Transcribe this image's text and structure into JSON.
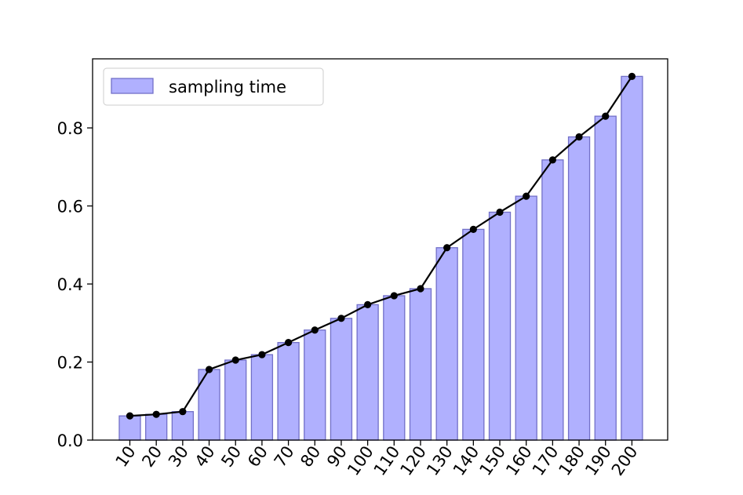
{
  "chart_data": {
    "type": "bar",
    "categories": [
      "10",
      "20",
      "30",
      "40",
      "50",
      "60",
      "70",
      "80",
      "90",
      "100",
      "110",
      "120",
      "130",
      "140",
      "150",
      "160",
      "170",
      "180",
      "190",
      "200"
    ],
    "series": [
      {
        "name": "sampling time",
        "kind": "bar",
        "values": [
          0.062,
          0.066,
          0.073,
          0.181,
          0.205,
          0.219,
          0.25,
          0.282,
          0.312,
          0.347,
          0.37,
          0.388,
          0.493,
          0.54,
          0.584,
          0.625,
          0.718,
          0.777,
          0.83,
          0.932
        ]
      },
      {
        "kind": "line",
        "values": [
          0.062,
          0.066,
          0.073,
          0.181,
          0.205,
          0.219,
          0.25,
          0.282,
          0.312,
          0.347,
          0.37,
          0.388,
          0.493,
          0.54,
          0.584,
          0.625,
          0.718,
          0.777,
          0.83,
          0.932
        ]
      }
    ],
    "yticks": [
      "0.0",
      "0.2",
      "0.4",
      "0.6",
      "0.8"
    ],
    "ytick_values": [
      0,
      0.2,
      0.4,
      0.6,
      0.8
    ],
    "ylim": [
      0,
      0.977
    ],
    "xlabel": "",
    "ylabel": "",
    "title": "",
    "grid": false,
    "legend": {
      "position": "upper-left",
      "entries": [
        "sampling time"
      ]
    },
    "colors": {
      "bar_fill": "#b0b0fe",
      "bar_edge": "#7270c8",
      "line": "#000000",
      "marker": "#000000",
      "axes": "#000000"
    }
  }
}
